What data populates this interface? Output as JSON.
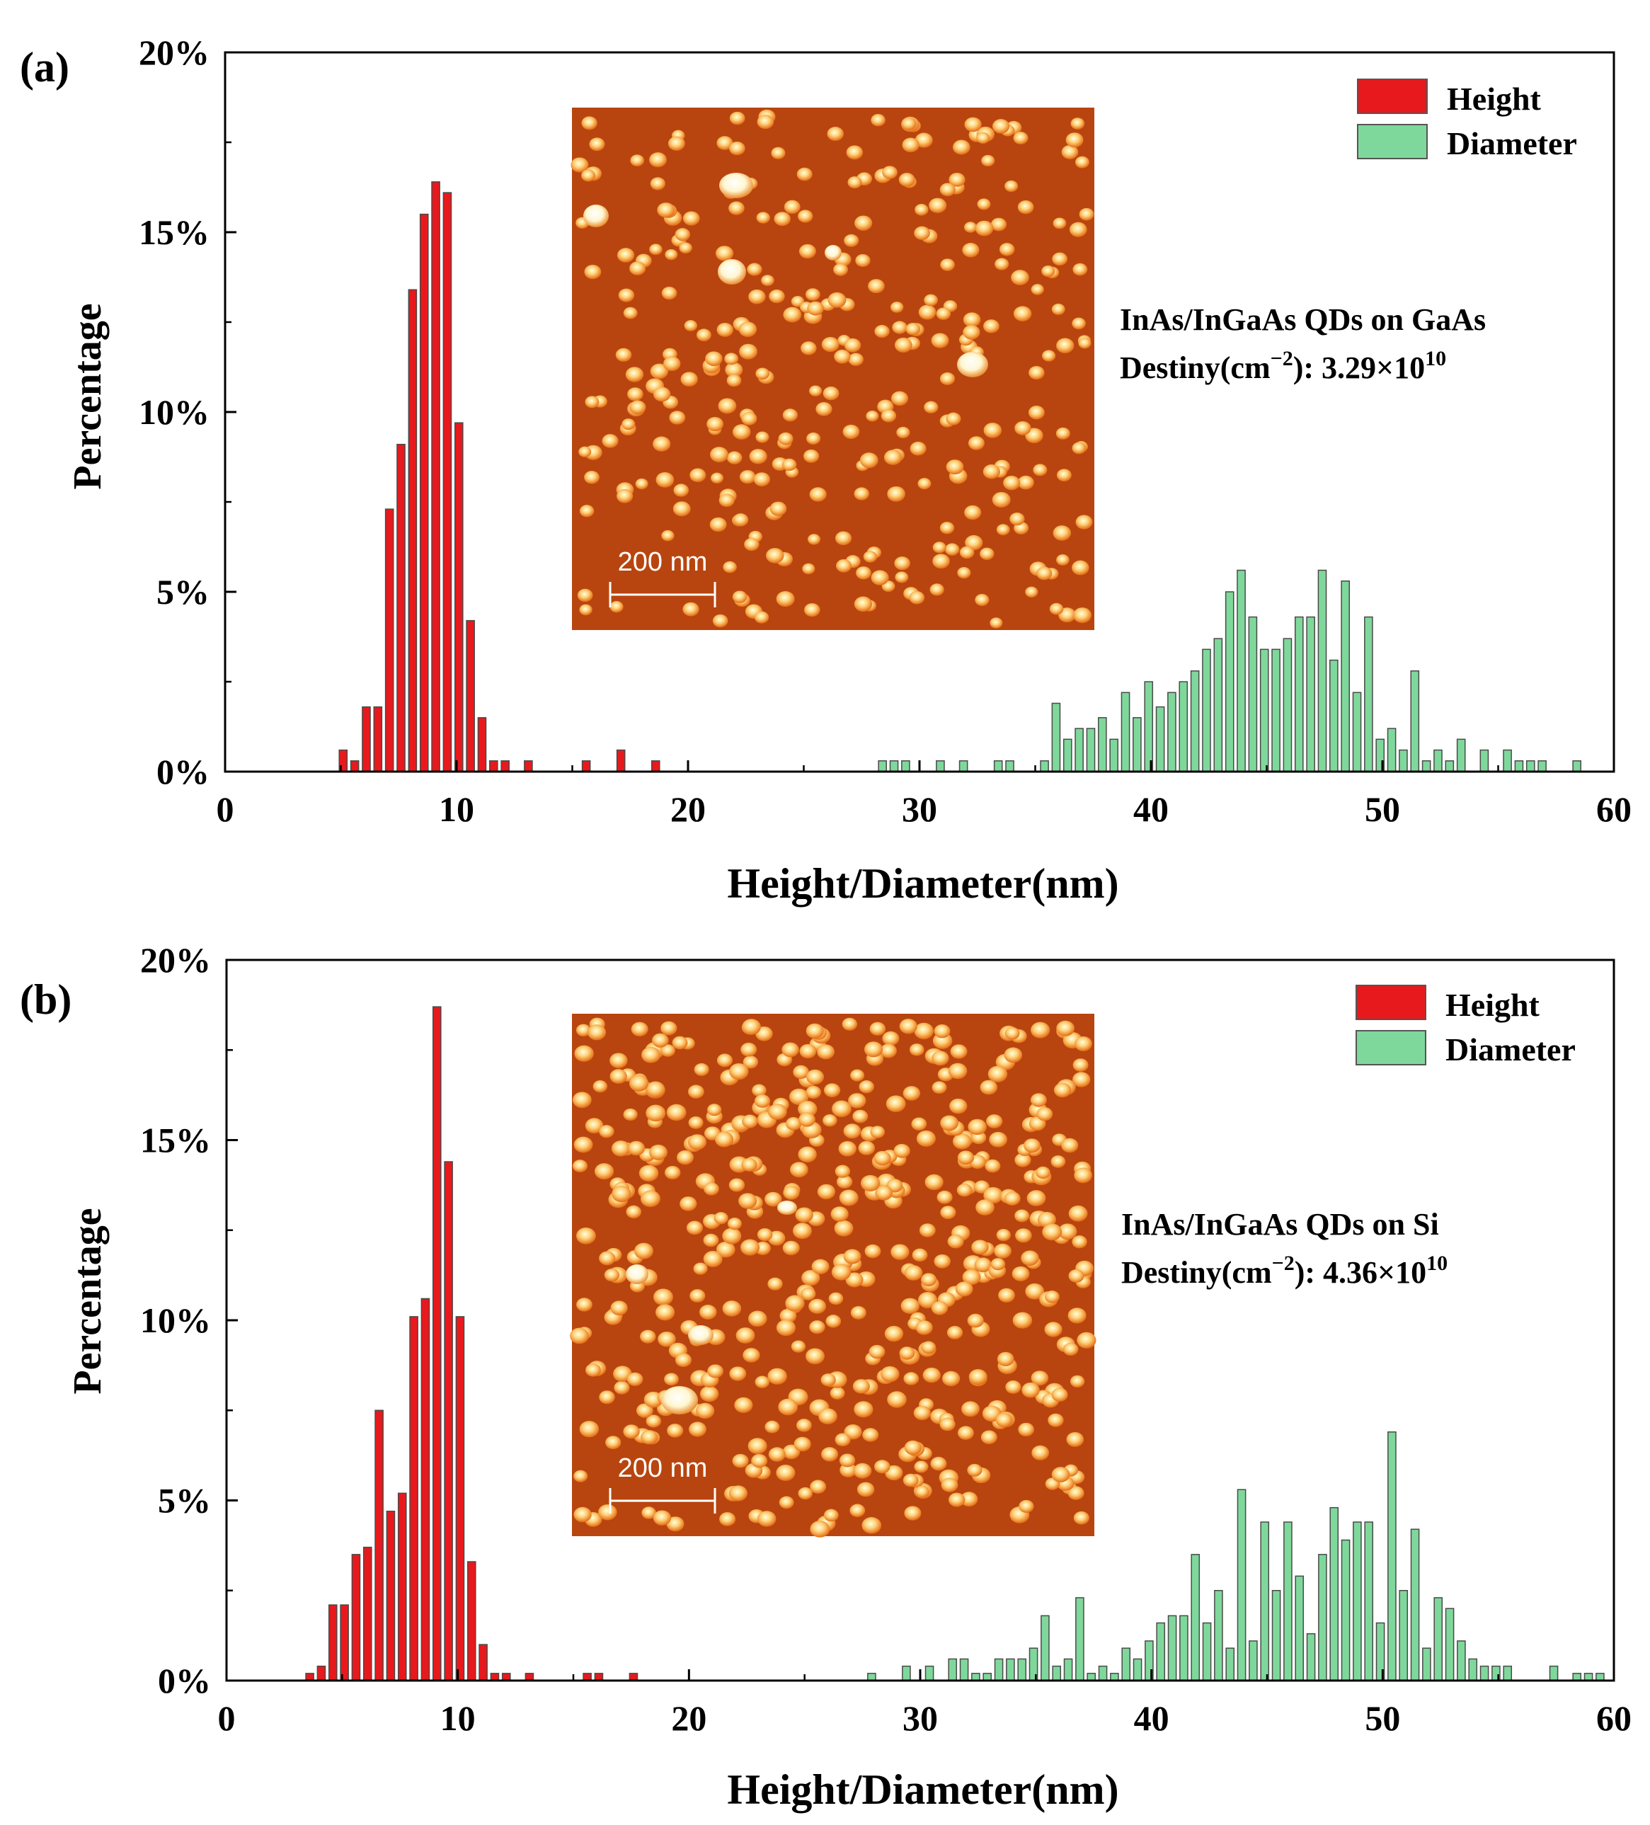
{
  "chart_data": [
    {
      "type": "bar",
      "panel_label": "(a)",
      "xlabel": "Height/Diameter(nm)",
      "ylabel": "Percentage",
      "xlim": [
        0,
        60
      ],
      "ylim": [
        0,
        20
      ],
      "xticks": [
        "0",
        "10",
        "20",
        "30",
        "40",
        "50",
        "60"
      ],
      "yticks": [
        "0%",
        "5%",
        "10%",
        "15%",
        "20%"
      ],
      "legend_position": "top-right",
      "annotation": {
        "line1": "InAs/InGaAs QDs on GaAs",
        "density_prefix": "Destiny(cm",
        "density_exponent": "−2",
        "density_mid": "):  3.29×10",
        "density_power": "10"
      },
      "inset": {
        "scale_label": "200 nm"
      },
      "series": [
        {
          "name": "Height",
          "color": "#e8191c",
          "x": [
            5.1,
            5.6,
            6.1,
            6.6,
            7.1,
            7.6,
            8.1,
            8.6,
            9.1,
            9.6,
            10.1,
            10.6,
            11.1,
            11.6,
            12.1,
            13.1,
            15.6,
            17.1,
            18.6
          ],
          "values": [
            0.6,
            0.3,
            1.8,
            1.8,
            7.3,
            9.1,
            13.4,
            15.5,
            16.4,
            16.1,
            9.7,
            4.2,
            1.5,
            0.3,
            0.3,
            0.3,
            0.3,
            0.6,
            0.3
          ]
        },
        {
          "name": "Diameter",
          "color": "#7fd89b",
          "x": [
            28.4,
            28.9,
            29.4,
            30.9,
            31.9,
            33.4,
            33.9,
            35.4,
            35.9,
            36.4,
            36.9,
            37.4,
            37.9,
            38.4,
            38.9,
            39.4,
            39.9,
            40.4,
            40.9,
            41.4,
            41.9,
            42.4,
            42.9,
            43.4,
            43.9,
            44.4,
            44.9,
            45.4,
            45.9,
            46.4,
            46.9,
            47.4,
            47.9,
            48.4,
            48.9,
            49.4,
            49.9,
            50.4,
            50.9,
            51.4,
            51.9,
            52.4,
            52.9,
            53.4,
            54.4,
            55.4,
            55.9,
            56.4,
            56.9,
            58.4
          ],
          "values": [
            0.3,
            0.3,
            0.3,
            0.3,
            0.3,
            0.3,
            0.3,
            0.3,
            1.9,
            0.9,
            1.2,
            1.2,
            1.5,
            0.9,
            2.2,
            1.5,
            2.5,
            1.8,
            2.2,
            2.5,
            2.8,
            3.4,
            3.7,
            5.0,
            5.6,
            4.3,
            3.4,
            3.4,
            3.7,
            4.3,
            4.3,
            5.6,
            3.1,
            5.3,
            2.2,
            4.3,
            0.9,
            1.2,
            0.6,
            2.8,
            0.3,
            0.6,
            0.3,
            0.9,
            0.6,
            0.6,
            0.3,
            0.3,
            0.3,
            0.3
          ]
        }
      ]
    },
    {
      "type": "bar",
      "panel_label": "(b)",
      "xlabel": "Height/Diameter(nm)",
      "ylabel": "Percentage",
      "xlim": [
        0,
        60
      ],
      "ylim": [
        0,
        20
      ],
      "xticks": [
        "0",
        "10",
        "20",
        "30",
        "40",
        "50",
        "60"
      ],
      "yticks": [
        "0%",
        "5%",
        "10%",
        "15%",
        "20%"
      ],
      "legend_position": "top-right",
      "annotation": {
        "line1": "InAs/InGaAs QDs on Si",
        "density_prefix": "Destiny(cm",
        "density_exponent": "−2",
        "density_mid": "):  4.36×10",
        "density_power": "10"
      },
      "inset": {
        "scale_label": "200 nm"
      },
      "series": [
        {
          "name": "Height",
          "color": "#e8191c",
          "x": [
            3.6,
            4.1,
            4.6,
            5.1,
            5.6,
            6.1,
            6.6,
            7.1,
            7.6,
            8.1,
            8.6,
            9.1,
            9.6,
            10.1,
            10.6,
            11.1,
            11.6,
            12.1,
            13.1,
            15.6,
            16.1,
            17.6
          ],
          "values": [
            0.2,
            0.4,
            2.1,
            2.1,
            3.5,
            3.7,
            7.5,
            4.7,
            5.2,
            10.1,
            10.6,
            18.7,
            14.4,
            10.1,
            3.3,
            1.0,
            0.2,
            0.2,
            0.2,
            0.2,
            0.2,
            0.2
          ]
        },
        {
          "name": "Diameter",
          "color": "#7fd89b",
          "x": [
            27.9,
            29.4,
            30.4,
            31.4,
            31.9,
            32.4,
            32.9,
            33.4,
            33.9,
            34.4,
            34.9,
            35.4,
            35.9,
            36.4,
            36.9,
            37.4,
            37.9,
            38.4,
            38.9,
            39.4,
            39.9,
            40.4,
            40.9,
            41.4,
            41.9,
            42.4,
            42.9,
            43.4,
            43.9,
            44.4,
            44.9,
            45.4,
            45.9,
            46.4,
            46.9,
            47.4,
            47.9,
            48.4,
            48.9,
            49.4,
            49.9,
            50.4,
            50.9,
            51.4,
            51.9,
            52.4,
            52.9,
            53.4,
            53.9,
            54.4,
            54.9,
            55.4,
            57.4,
            58.4,
            58.9,
            59.4
          ],
          "values": [
            0.2,
            0.4,
            0.4,
            0.6,
            0.6,
            0.2,
            0.2,
            0.6,
            0.6,
            0.6,
            0.9,
            1.8,
            0.4,
            0.6,
            2.3,
            0.2,
            0.4,
            0.2,
            0.9,
            0.6,
            1.1,
            1.6,
            1.8,
            1.8,
            3.5,
            1.6,
            2.5,
            0.9,
            5.3,
            1.1,
            4.4,
            2.5,
            4.4,
            2.9,
            1.3,
            3.5,
            4.8,
            3.9,
            4.4,
            4.4,
            1.6,
            6.9,
            2.5,
            4.2,
            0.9,
            2.3,
            2.0,
            1.1,
            0.6,
            0.4,
            0.4,
            0.4,
            0.4,
            0.2,
            0.2,
            0.2
          ]
        }
      ]
    }
  ]
}
